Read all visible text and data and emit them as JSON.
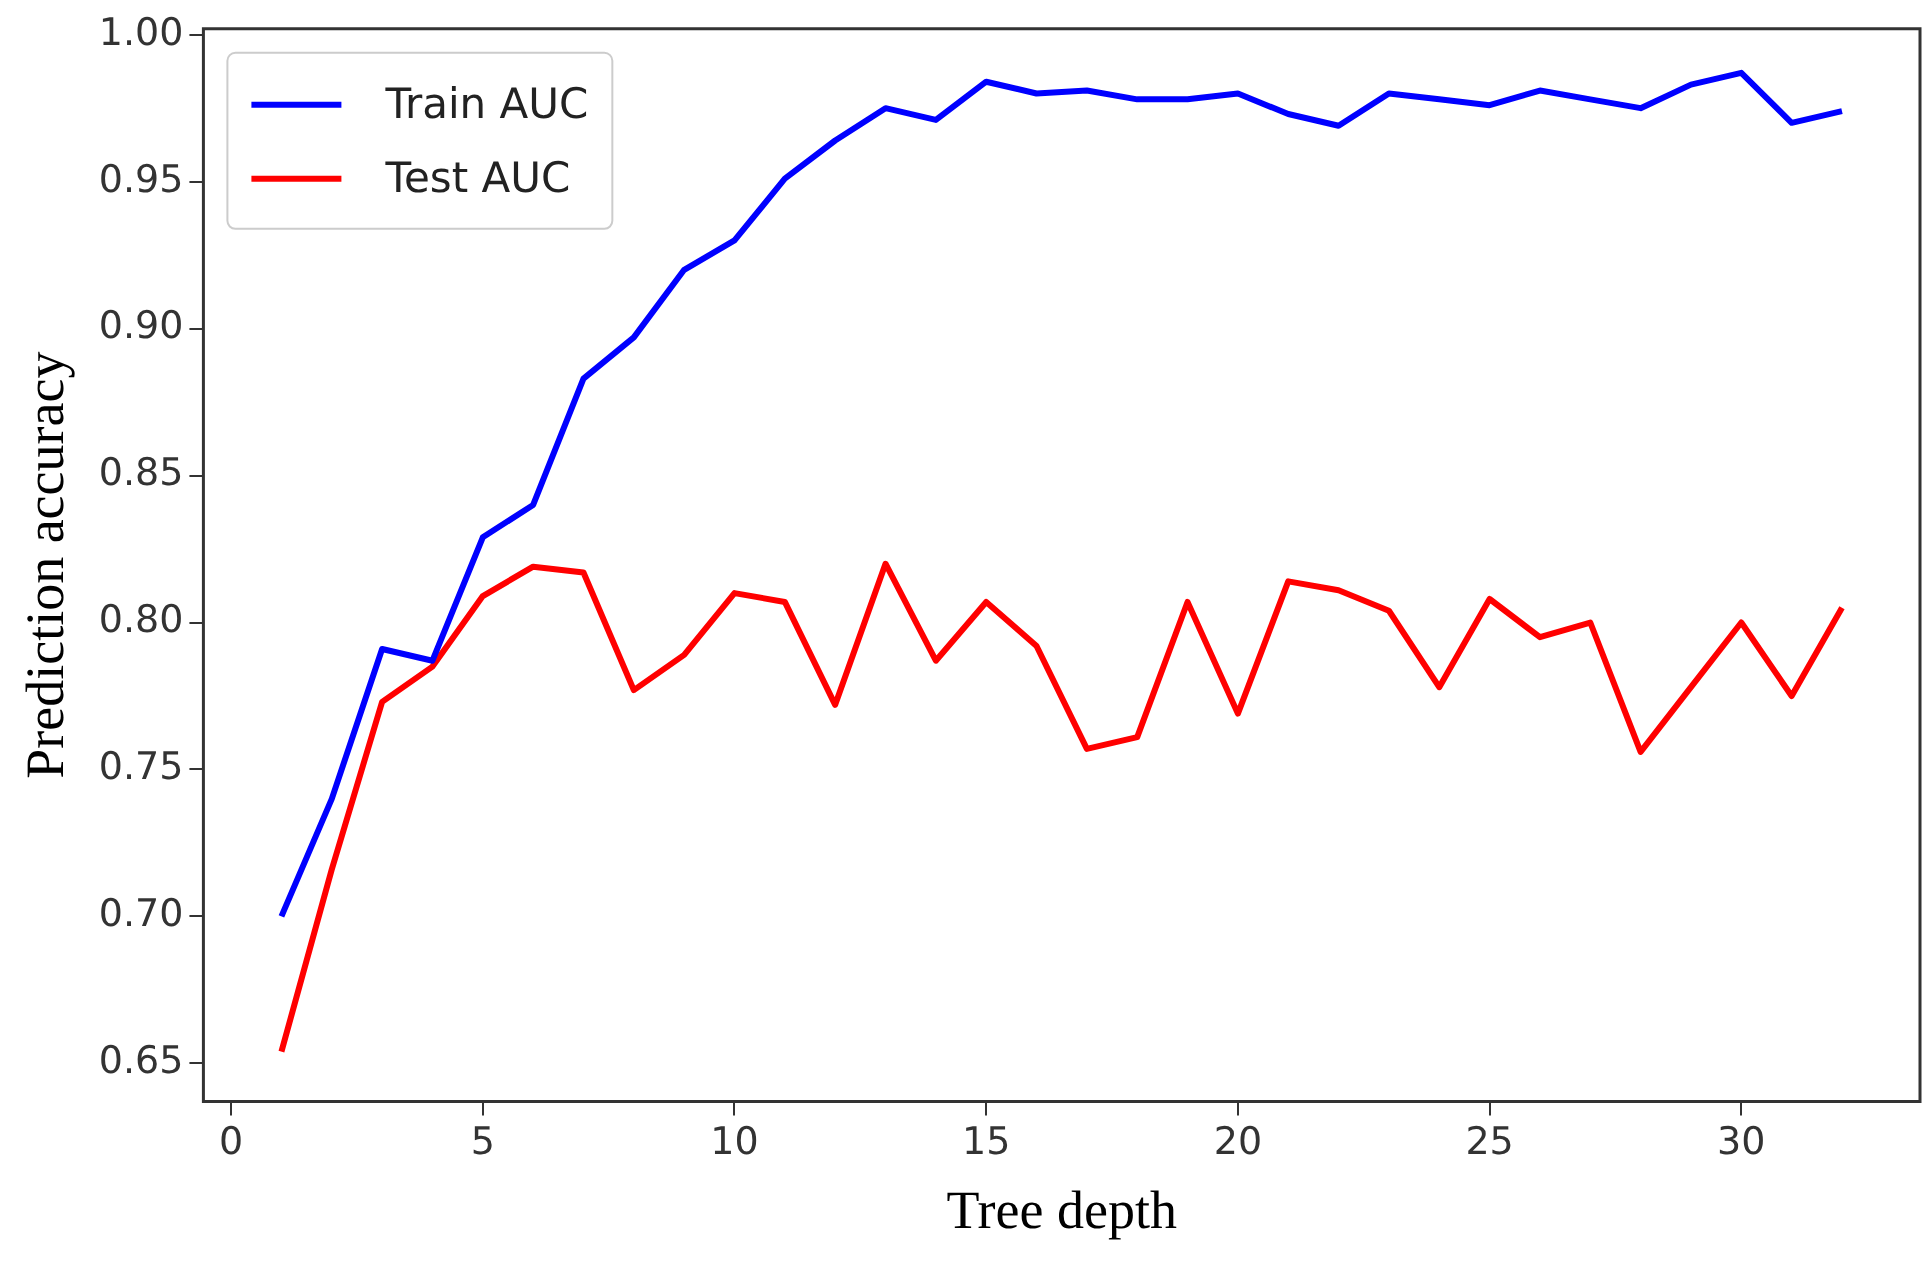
{
  "chart_data": {
    "type": "line",
    "xlabel": "Tree depth",
    "ylabel": "Prediction accuracy",
    "x": [
      1,
      2,
      3,
      4,
      5,
      6,
      7,
      8,
      9,
      10,
      11,
      12,
      13,
      14,
      15,
      16,
      17,
      18,
      19,
      20,
      21,
      22,
      23,
      24,
      25,
      26,
      27,
      28,
      29,
      30,
      31,
      32
    ],
    "series": [
      {
        "name": "Train AUC",
        "color": "#0000ff",
        "values": [
          0.7,
          0.74,
          0.791,
          0.787,
          0.829,
          0.84,
          0.883,
          0.897,
          0.92,
          0.93,
          0.951,
          0.964,
          0.975,
          0.971,
          0.984,
          0.98,
          0.981,
          0.978,
          0.978,
          0.98,
          0.973,
          0.969,
          0.98,
          0.978,
          0.976,
          0.981,
          0.978,
          0.975,
          0.983,
          0.987,
          0.97,
          0.974
        ]
      },
      {
        "name": "Test AUC",
        "color": "#ff0000",
        "values": [
          0.654,
          0.716,
          0.773,
          0.785,
          0.809,
          0.819,
          0.817,
          0.777,
          0.789,
          0.81,
          0.807,
          0.772,
          0.82,
          0.787,
          0.807,
          0.792,
          0.757,
          0.761,
          0.807,
          0.769,
          0.814,
          0.811,
          0.804,
          0.778,
          0.808,
          0.795,
          0.8,
          0.756,
          0.778,
          0.8,
          0.775,
          0.805
        ]
      }
    ],
    "xlim": [
      -0.55,
      33.55
    ],
    "ylim": [
      0.637,
      1.002
    ],
    "xticks": [
      0,
      5,
      10,
      15,
      20,
      25,
      30
    ],
    "yticks": [
      0.65,
      {
        "value": 0.7,
        "label": "0.70"
      },
      0.75,
      {
        "value": 0.8,
        "label": "0.80"
      },
      0.85,
      {
        "value": 0.9,
        "label": "0.90"
      },
      0.95,
      {
        "value": 1,
        "label": "1.00"
      }
    ],
    "grid": false,
    "legend": "top left",
    "marker": "none",
    "line_style": "solid"
  }
}
